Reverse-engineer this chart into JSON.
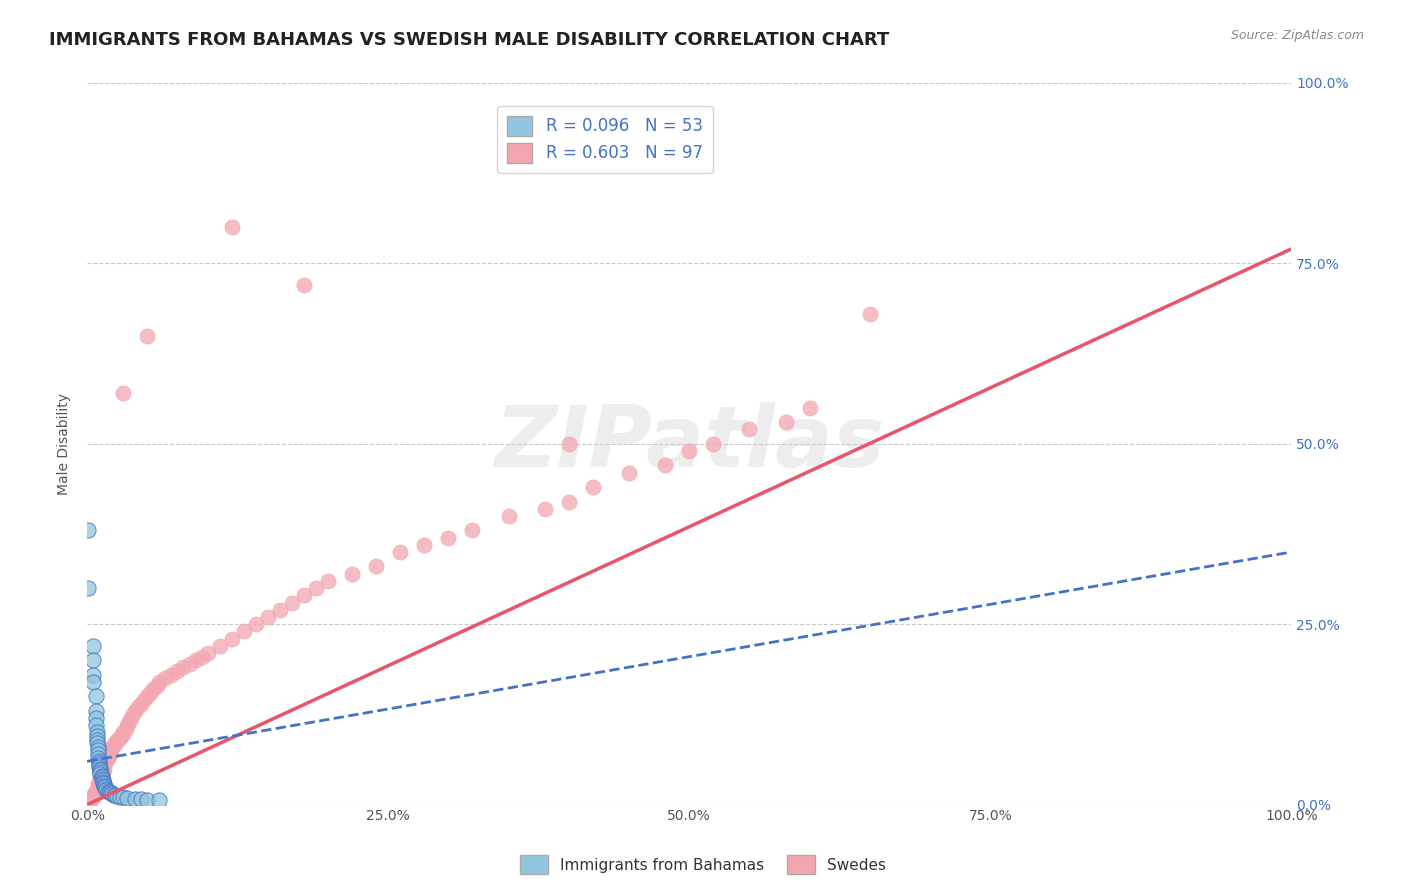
{
  "title": "IMMIGRANTS FROM BAHAMAS VS SWEDISH MALE DISABILITY CORRELATION CHART",
  "source_text": "Source: ZipAtlas.com",
  "xlabel": "",
  "ylabel": "Male Disability",
  "xticklabels": [
    "0.0%",
    "25.0%",
    "50.0%",
    "75.0%",
    "100.0%"
  ],
  "yticklabels_right": [
    "0.0%",
    "25.0%",
    "50.0%",
    "75.0%",
    "100.0%"
  ],
  "xlim": [
    0.0,
    1.0
  ],
  "ylim": [
    0.0,
    1.0
  ],
  "legend_r1": "R = 0.096",
  "legend_n1": "N = 53",
  "legend_r2": "R = 0.603",
  "legend_n2": "N = 97",
  "color_blue": "#92c5de",
  "color_pink": "#f4a6b0",
  "trendline_blue_color": "#4472C4",
  "trendline_pink_color": "#e8546a",
  "watermark": "ZIPatlas",
  "background_color": "#ffffff",
  "blue_scatter": [
    [
      0.001,
      0.38
    ],
    [
      0.001,
      0.3
    ],
    [
      0.005,
      0.22
    ],
    [
      0.005,
      0.2
    ],
    [
      0.005,
      0.18
    ],
    [
      0.005,
      0.17
    ],
    [
      0.007,
      0.15
    ],
    [
      0.007,
      0.13
    ],
    [
      0.007,
      0.12
    ],
    [
      0.007,
      0.11
    ],
    [
      0.008,
      0.1
    ],
    [
      0.008,
      0.095
    ],
    [
      0.008,
      0.09
    ],
    [
      0.008,
      0.085
    ],
    [
      0.009,
      0.08
    ],
    [
      0.009,
      0.075
    ],
    [
      0.009,
      0.07
    ],
    [
      0.009,
      0.065
    ],
    [
      0.01,
      0.06
    ],
    [
      0.01,
      0.057
    ],
    [
      0.01,
      0.055
    ],
    [
      0.01,
      0.052
    ],
    [
      0.011,
      0.05
    ],
    [
      0.011,
      0.048
    ],
    [
      0.011,
      0.045
    ],
    [
      0.011,
      0.042
    ],
    [
      0.012,
      0.04
    ],
    [
      0.012,
      0.038
    ],
    [
      0.012,
      0.036
    ],
    [
      0.013,
      0.034
    ],
    [
      0.013,
      0.032
    ],
    [
      0.013,
      0.03
    ],
    [
      0.014,
      0.028
    ],
    [
      0.014,
      0.026
    ],
    [
      0.015,
      0.025
    ],
    [
      0.015,
      0.024
    ],
    [
      0.016,
      0.022
    ],
    [
      0.016,
      0.02
    ],
    [
      0.017,
      0.019
    ],
    [
      0.018,
      0.018
    ],
    [
      0.019,
      0.017
    ],
    [
      0.02,
      0.016
    ],
    [
      0.021,
      0.015
    ],
    [
      0.022,
      0.014
    ],
    [
      0.023,
      0.013
    ],
    [
      0.025,
      0.012
    ],
    [
      0.027,
      0.011
    ],
    [
      0.03,
      0.01
    ],
    [
      0.033,
      0.009
    ],
    [
      0.04,
      0.008
    ],
    [
      0.045,
      0.008
    ],
    [
      0.05,
      0.007
    ],
    [
      0.06,
      0.006
    ]
  ],
  "pink_scatter": [
    [
      0.001,
      0.005
    ],
    [
      0.002,
      0.007
    ],
    [
      0.003,
      0.008
    ],
    [
      0.004,
      0.009
    ],
    [
      0.005,
      0.01
    ],
    [
      0.005,
      0.012
    ],
    [
      0.006,
      0.013
    ],
    [
      0.006,
      0.015
    ],
    [
      0.007,
      0.016
    ],
    [
      0.007,
      0.018
    ],
    [
      0.008,
      0.02
    ],
    [
      0.008,
      0.022
    ],
    [
      0.009,
      0.025
    ],
    [
      0.009,
      0.028
    ],
    [
      0.01,
      0.03
    ],
    [
      0.01,
      0.032
    ],
    [
      0.011,
      0.035
    ],
    [
      0.011,
      0.038
    ],
    [
      0.012,
      0.04
    ],
    [
      0.012,
      0.042
    ],
    [
      0.013,
      0.045
    ],
    [
      0.013,
      0.048
    ],
    [
      0.014,
      0.05
    ],
    [
      0.014,
      0.055
    ],
    [
      0.015,
      0.058
    ],
    [
      0.015,
      0.06
    ],
    [
      0.016,
      0.062
    ],
    [
      0.017,
      0.065
    ],
    [
      0.018,
      0.068
    ],
    [
      0.018,
      0.07
    ],
    [
      0.019,
      0.072
    ],
    [
      0.02,
      0.075
    ],
    [
      0.02,
      0.078
    ],
    [
      0.021,
      0.08
    ],
    [
      0.022,
      0.082
    ],
    [
      0.023,
      0.085
    ],
    [
      0.025,
      0.088
    ],
    [
      0.025,
      0.09
    ],
    [
      0.027,
      0.092
    ],
    [
      0.028,
      0.095
    ],
    [
      0.03,
      0.098
    ],
    [
      0.03,
      0.1
    ],
    [
      0.032,
      0.105
    ],
    [
      0.033,
      0.11
    ],
    [
      0.035,
      0.115
    ],
    [
      0.036,
      0.12
    ],
    [
      0.038,
      0.125
    ],
    [
      0.04,
      0.13
    ],
    [
      0.042,
      0.135
    ],
    [
      0.045,
      0.14
    ],
    [
      0.047,
      0.145
    ],
    [
      0.05,
      0.15
    ],
    [
      0.052,
      0.155
    ],
    [
      0.055,
      0.16
    ],
    [
      0.058,
      0.165
    ],
    [
      0.06,
      0.17
    ],
    [
      0.065,
      0.175
    ],
    [
      0.07,
      0.18
    ],
    [
      0.075,
      0.185
    ],
    [
      0.08,
      0.19
    ],
    [
      0.085,
      0.195
    ],
    [
      0.09,
      0.2
    ],
    [
      0.095,
      0.205
    ],
    [
      0.1,
      0.21
    ],
    [
      0.11,
      0.22
    ],
    [
      0.12,
      0.23
    ],
    [
      0.13,
      0.24
    ],
    [
      0.14,
      0.25
    ],
    [
      0.15,
      0.26
    ],
    [
      0.16,
      0.27
    ],
    [
      0.17,
      0.28
    ],
    [
      0.18,
      0.29
    ],
    [
      0.19,
      0.3
    ],
    [
      0.2,
      0.31
    ],
    [
      0.22,
      0.32
    ],
    [
      0.24,
      0.33
    ],
    [
      0.26,
      0.35
    ],
    [
      0.28,
      0.36
    ],
    [
      0.3,
      0.37
    ],
    [
      0.32,
      0.38
    ],
    [
      0.35,
      0.4
    ],
    [
      0.38,
      0.41
    ],
    [
      0.4,
      0.42
    ],
    [
      0.42,
      0.44
    ],
    [
      0.45,
      0.46
    ],
    [
      0.48,
      0.47
    ],
    [
      0.5,
      0.49
    ],
    [
      0.52,
      0.5
    ],
    [
      0.55,
      0.52
    ],
    [
      0.58,
      0.53
    ],
    [
      0.6,
      0.55
    ],
    [
      0.03,
      0.57
    ],
    [
      0.05,
      0.65
    ],
    [
      0.12,
      0.8
    ],
    [
      0.18,
      0.72
    ],
    [
      0.4,
      0.5
    ],
    [
      0.65,
      0.68
    ]
  ],
  "blue_trend_x": [
    0.0,
    1.0
  ],
  "blue_trend_y": [
    0.06,
    0.35
  ],
  "pink_trend_x": [
    0.0,
    1.0
  ],
  "pink_trend_y": [
    0.0,
    0.77
  ],
  "title_fontsize": 13,
  "axis_label_fontsize": 10,
  "tick_fontsize": 10,
  "legend_fontsize": 12
}
